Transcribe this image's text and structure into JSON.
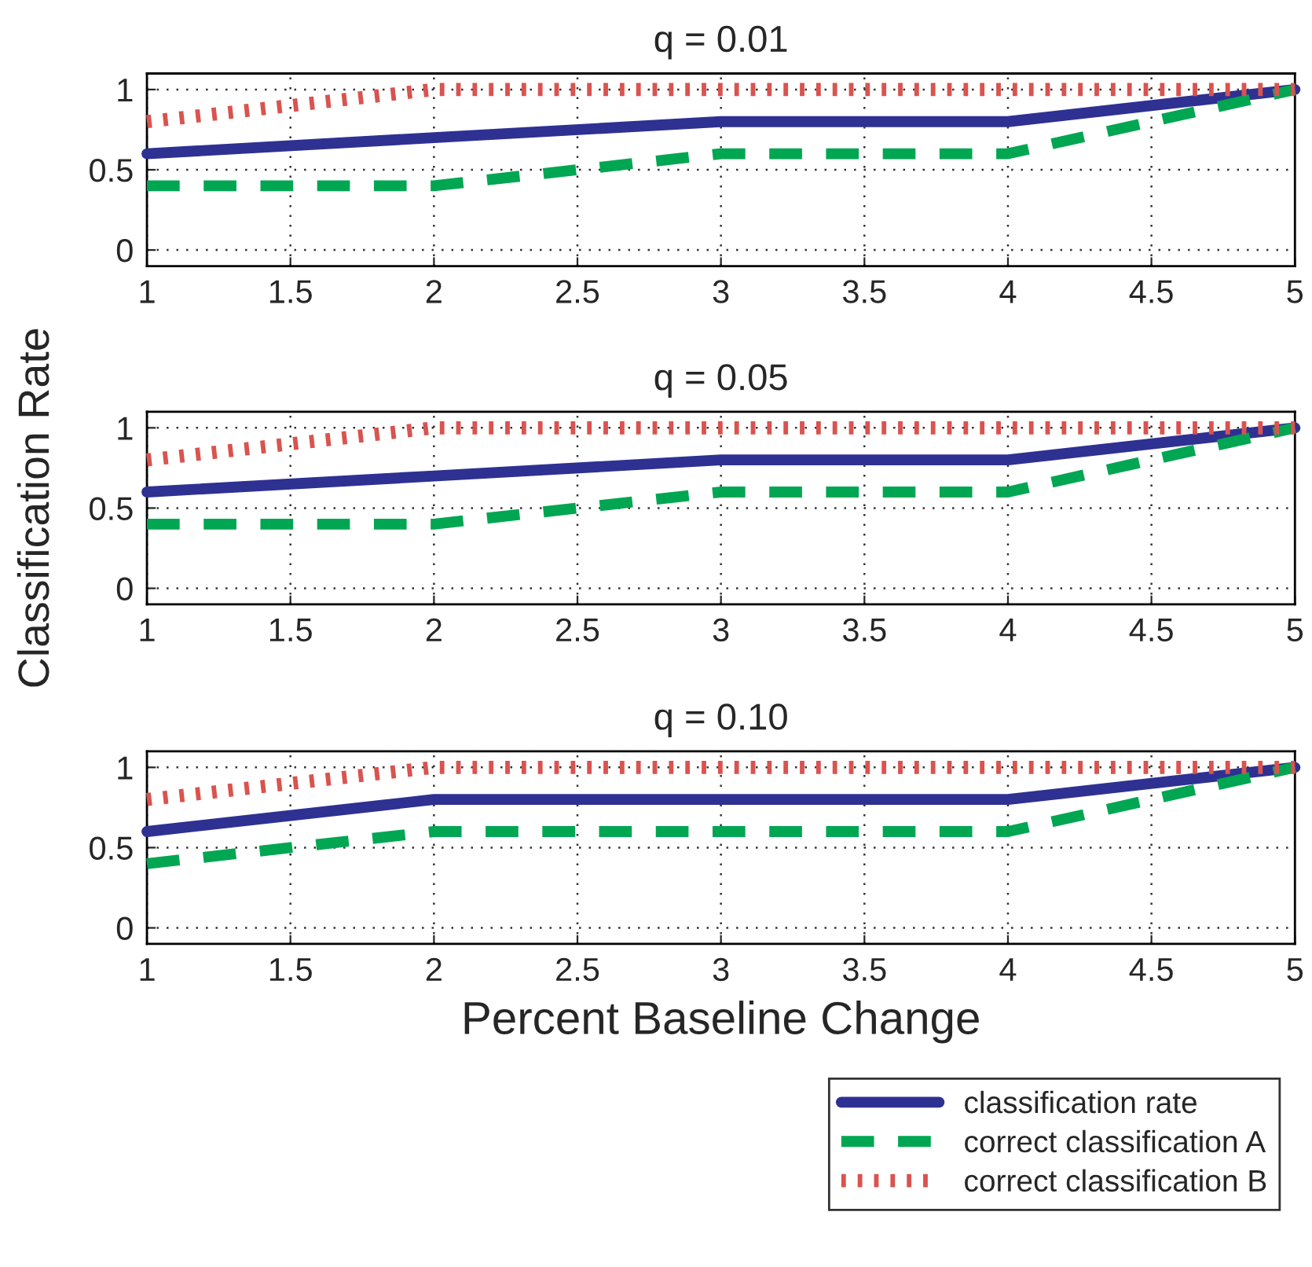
{
  "chart_data": [
    {
      "type": "line",
      "title": "q = 0.01",
      "x": [
        1,
        2,
        3,
        4,
        5
      ],
      "xlim": [
        1,
        5
      ],
      "ylim": [
        -0.1,
        1.1
      ],
      "xticks": [
        1,
        1.5,
        2,
        2.5,
        3,
        3.5,
        4,
        4.5,
        5
      ],
      "yticks": [
        0,
        0.5,
        1
      ],
      "grid": true,
      "series": [
        {
          "color": "#2e3192",
          "line_style": "solid",
          "values": [
            0.6,
            0.7,
            0.8,
            0.8,
            1
          ]
        },
        {
          "color": "#00a651",
          "line_style": "dashed",
          "values": [
            0.4,
            0.4,
            0.6,
            0.6,
            1
          ]
        },
        {
          "color": "#d9534f",
          "line_style": "dotted",
          "values": [
            0.8,
            1,
            1,
            1,
            1
          ]
        }
      ]
    },
    {
      "type": "line",
      "title": "q = 0.05",
      "ylabel": "Classification Rate",
      "x": [
        1,
        2,
        3,
        4,
        5
      ],
      "xlim": [
        1,
        5
      ],
      "ylim": [
        -0.1,
        1.1
      ],
      "xticks": [
        1,
        1.5,
        2,
        2.5,
        3,
        3.5,
        4,
        4.5,
        5
      ],
      "yticks": [
        0,
        0.5,
        1
      ],
      "grid": true,
      "series": [
        {
          "color": "#2e3192",
          "line_style": "solid",
          "values": [
            0.6,
            0.7,
            0.8,
            0.8,
            1
          ]
        },
        {
          "color": "#00a651",
          "line_style": "dashed",
          "values": [
            0.4,
            0.4,
            0.6,
            0.6,
            1
          ]
        },
        {
          "color": "#d9534f",
          "line_style": "dotted",
          "values": [
            0.8,
            1,
            1,
            1,
            1
          ]
        }
      ]
    },
    {
      "type": "line",
      "title": "q = 0.10",
      "xlabel": "Percent Baseline Change",
      "x": [
        1,
        2,
        3,
        4,
        5
      ],
      "xlim": [
        1,
        5
      ],
      "ylim": [
        -0.1,
        1.1
      ],
      "xticks": [
        1,
        1.5,
        2,
        2.5,
        3,
        3.5,
        4,
        4.5,
        5
      ],
      "yticks": [
        0,
        0.5,
        1
      ],
      "grid": true,
      "legend": "bottom right",
      "series": [
        {
          "name": "classification rate",
          "color": "#2e3192",
          "line_style": "solid",
          "values": [
            0.6,
            0.8,
            0.8,
            0.8,
            1
          ]
        },
        {
          "name": "correct classification A",
          "color": "#00a651",
          "line_style": "dashed",
          "values": [
            0.4,
            0.6,
            0.6,
            0.6,
            1
          ]
        },
        {
          "name": "correct classification B",
          "color": "#d9534f",
          "line_style": "dotted",
          "values": [
            0.8,
            1,
            1,
            1,
            1
          ]
        }
      ]
    }
  ]
}
